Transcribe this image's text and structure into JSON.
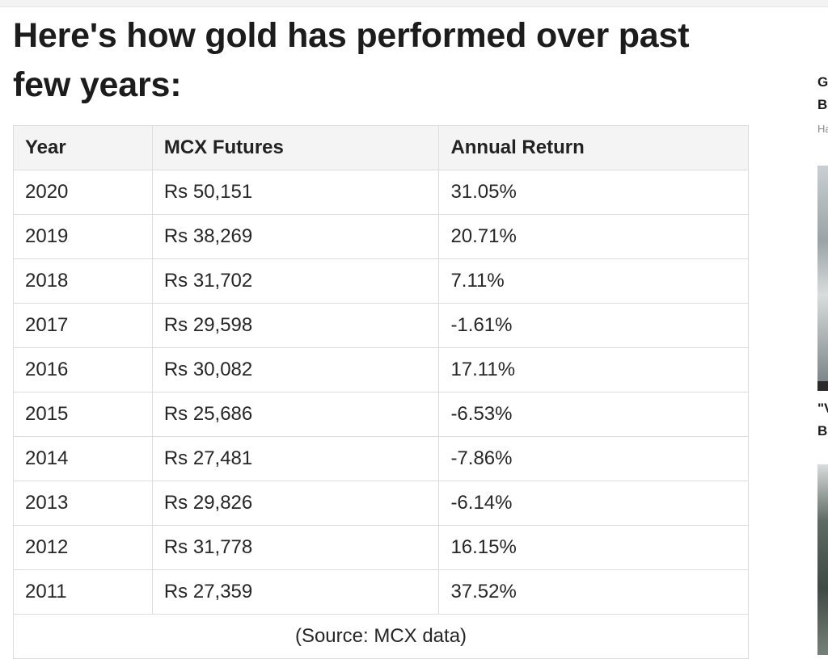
{
  "article": {
    "headline": "Here's how gold has performed over past few years:"
  },
  "table": {
    "headers": [
      "Year",
      "MCX Futures",
      "Annual Return"
    ],
    "rows": [
      [
        "2020",
        "Rs 50,151",
        "31.05%"
      ],
      [
        "2019",
        "Rs 38,269",
        "20.71%"
      ],
      [
        "2018",
        "Rs 31,702",
        "7.11%"
      ],
      [
        "2017",
        "Rs 29,598",
        "-1.61%"
      ],
      [
        "2016",
        "Rs 30,082",
        "17.11%"
      ],
      [
        "2015",
        "Rs 25,686",
        "-6.53%"
      ],
      [
        "2014",
        "Rs 27,481",
        "-7.86%"
      ],
      [
        "2013",
        "Rs 29,826",
        "-6.14%"
      ],
      [
        "2012",
        "Rs 31,778",
        "16.15%"
      ],
      [
        "2011",
        "Rs 27,359",
        "37.52%"
      ]
    ],
    "source": "(Source: MCX data)"
  },
  "sidebar": {
    "story1_line1": "G",
    "story1_line2": "B",
    "story1_meta": "Ha",
    "story2_line1": "\"V",
    "story2_line2": "B"
  }
}
